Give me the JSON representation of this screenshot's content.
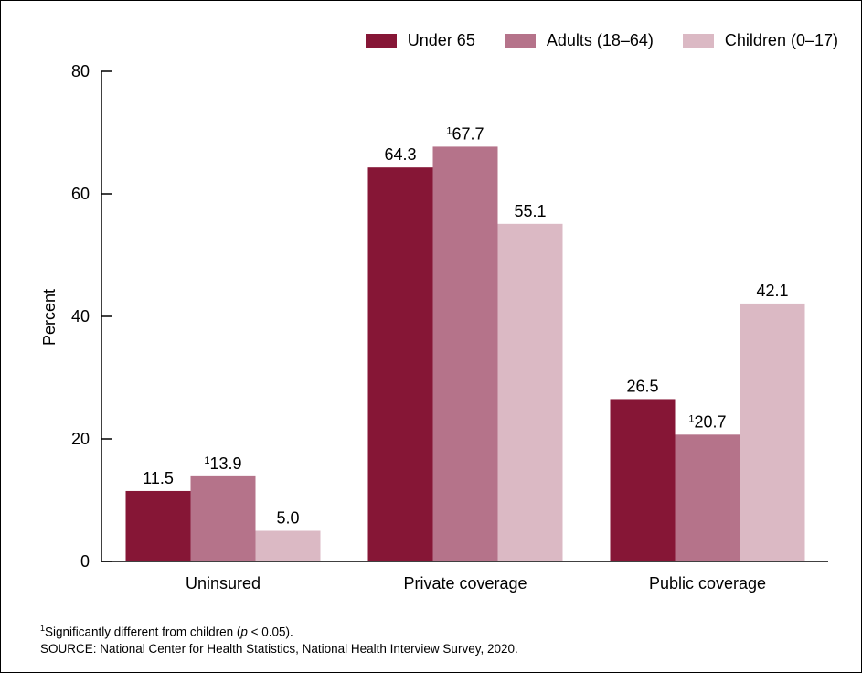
{
  "chart_data": {
    "type": "bar",
    "categories": [
      "Uninsured",
      "Private coverage",
      "Public coverage"
    ],
    "series": [
      {
        "name": "Under 65",
        "values": [
          11.5,
          64.3,
          26.5
        ],
        "labels": [
          "11.5",
          "64.3",
          "26.5"
        ],
        "flags": [
          "",
          "",
          ""
        ],
        "color": "#861636"
      },
      {
        "name": "Adults (18–64)",
        "values": [
          13.9,
          67.7,
          20.7
        ],
        "labels": [
          "13.9",
          "67.7",
          "20.7"
        ],
        "flags": [
          "1",
          "1",
          "1"
        ],
        "color": "#b5738a"
      },
      {
        "name": "Children (0–17)",
        "values": [
          5.0,
          55.1,
          42.1
        ],
        "labels": [
          "5.0",
          "55.1",
          "42.1"
        ],
        "flags": [
          "",
          "",
          ""
        ],
        "color": "#dbb9c4"
      }
    ],
    "ylabel": "Percent",
    "xlabel": "",
    "ylim": [
      0,
      80
    ],
    "yticks": [
      "0",
      "20",
      "40",
      "60",
      "80"
    ],
    "grid": false,
    "legend_position": "top-right"
  },
  "footnotes": {
    "marker": "1",
    "sig_prefix": "Significantly different from children (",
    "sig_p": "p",
    "sig_suffix": " < 0.05).",
    "source": "SOURCE: National Center for Health Statistics, National Health Interview Survey, 2020."
  }
}
